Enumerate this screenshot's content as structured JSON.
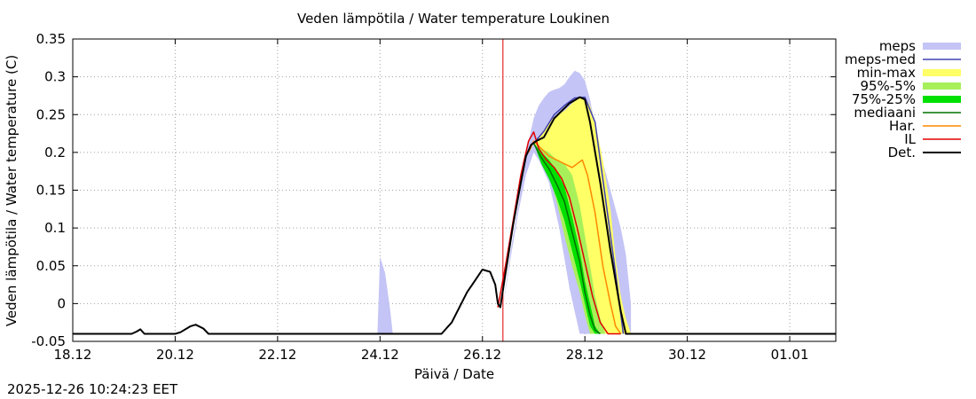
{
  "chart_data": {
    "type": "area",
    "title": "Veden lämpötila / Water temperature Loukinen",
    "xlabel": "Päivä / Date",
    "ylabel": "Veden lämpötila / Water temperature (C)",
    "xlim": [
      0,
      14.9
    ],
    "ylim": [
      -0.05,
      0.35
    ],
    "yticks": [
      -0.05,
      0,
      0.05,
      0.1,
      0.15,
      0.2,
      0.25,
      0.3,
      0.35
    ],
    "ytick_labels": [
      "-0.05",
      "0",
      "0.05",
      "0.1",
      "0.15",
      "0.2",
      "0.25",
      "0.3",
      "0.35"
    ],
    "xticks": [
      0,
      2,
      4,
      6,
      8,
      10,
      12,
      14
    ],
    "xtick_labels": [
      "18.12",
      "20.12",
      "22.12",
      "24.12",
      "26.12",
      "28.12",
      "30.12",
      "01.01"
    ],
    "grid": true,
    "now_line_x": 8.4,
    "legend": [
      {
        "key": "meps",
        "label": "meps",
        "color": "#c4c4f6",
        "kind": "band"
      },
      {
        "key": "meps_med",
        "label": "meps-med",
        "color": "#4040b0",
        "kind": "line"
      },
      {
        "key": "minmax",
        "label": "min-max",
        "color": "#ffff66",
        "kind": "band"
      },
      {
        "key": "p95_5",
        "label": "95%-5%",
        "color": "#a8f05a",
        "kind": "band"
      },
      {
        "key": "p75_25",
        "label": "75%-25%",
        "color": "#00e000",
        "kind": "band"
      },
      {
        "key": "mediaani",
        "label": "mediaani",
        "color": "#007000",
        "kind": "line"
      },
      {
        "key": "har",
        "label": "Har.",
        "color": "#ff8800",
        "kind": "line"
      },
      {
        "key": "il",
        "label": "IL",
        "color": "#e00000",
        "kind": "line"
      },
      {
        "key": "det",
        "label": "Det.",
        "color": "#000000",
        "kind": "line"
      }
    ],
    "series": [
      {
        "name": "meps",
        "kind": "band",
        "x": [
          5.95,
          6.0,
          6.1,
          6.2,
          6.25,
          8.4,
          8.55,
          8.7,
          8.85,
          9.0,
          9.1,
          9.2,
          9.3,
          9.4,
          9.5,
          9.6,
          9.7,
          9.8,
          9.9,
          10.0,
          10.1,
          10.3,
          10.5,
          10.7,
          10.8,
          10.9
        ],
        "upper": [
          -0.04,
          0.062,
          0.04,
          -0.01,
          -0.04,
          -0.005,
          0.07,
          0.13,
          0.2,
          0.245,
          0.262,
          0.272,
          0.28,
          0.283,
          0.285,
          0.29,
          0.3,
          0.308,
          0.305,
          0.295,
          0.27,
          0.2,
          0.15,
          0.1,
          0.065,
          0.0
        ],
        "lower": [
          -0.04,
          -0.04,
          -0.04,
          -0.04,
          -0.04,
          -0.005,
          0.06,
          0.12,
          0.17,
          0.2,
          0.19,
          0.175,
          0.16,
          0.13,
          0.1,
          0.06,
          0.02,
          -0.01,
          -0.04,
          -0.04,
          -0.04,
          -0.04,
          -0.04,
          -0.04,
          -0.04,
          -0.04
        ]
      },
      {
        "name": "min-max",
        "kind": "band",
        "x": [
          9.0,
          9.15,
          9.3,
          9.45,
          9.6,
          9.75,
          9.9,
          10.0,
          10.1,
          10.2,
          10.35,
          10.5,
          10.6,
          10.7,
          10.8,
          10.9
        ],
        "upper": [
          0.212,
          0.225,
          0.24,
          0.25,
          0.255,
          0.265,
          0.273,
          0.273,
          0.262,
          0.24,
          0.19,
          0.125,
          0.06,
          0.01,
          -0.02,
          -0.04
        ],
        "lower": [
          0.212,
          0.2,
          0.185,
          0.17,
          0.14,
          0.1,
          0.06,
          0.03,
          0.0,
          -0.025,
          -0.04,
          -0.04,
          -0.04,
          -0.04,
          -0.04,
          -0.04
        ]
      },
      {
        "name": "95%-5%",
        "kind": "band",
        "x": [
          9.0,
          9.15,
          9.3,
          9.45,
          9.6,
          9.75,
          9.9,
          10.0,
          10.1,
          10.2,
          10.3,
          10.4,
          10.5
        ],
        "upper": [
          0.212,
          0.205,
          0.2,
          0.19,
          0.185,
          0.17,
          0.13,
          0.09,
          0.05,
          0.01,
          -0.02,
          -0.04,
          -0.04
        ],
        "lower": [
          0.212,
          0.195,
          0.17,
          0.135,
          0.09,
          0.05,
          0.015,
          -0.015,
          -0.04,
          -0.04,
          -0.04,
          -0.04,
          -0.04
        ]
      },
      {
        "name": "75%-25%",
        "kind": "band",
        "x": [
          9.0,
          9.15,
          9.3,
          9.45,
          9.6,
          9.75,
          9.9,
          10.0,
          10.1,
          10.2,
          10.3
        ],
        "upper": [
          0.212,
          0.2,
          0.19,
          0.175,
          0.155,
          0.115,
          0.07,
          0.03,
          0.0,
          -0.03,
          -0.04
        ],
        "lower": [
          0.212,
          0.185,
          0.165,
          0.14,
          0.11,
          0.07,
          0.03,
          0.0,
          -0.03,
          -0.04,
          -0.04
        ]
      },
      {
        "name": "mediaani",
        "kind": "line",
        "x": [
          9.0,
          9.15,
          9.3,
          9.45,
          9.6,
          9.75,
          9.9,
          10.0,
          10.1,
          10.2,
          10.3
        ],
        "y": [
          0.212,
          0.193,
          0.178,
          0.158,
          0.135,
          0.095,
          0.055,
          0.015,
          -0.015,
          -0.035,
          -0.04
        ]
      },
      {
        "name": "meps-med",
        "kind": "line",
        "x": [
          9.0,
          9.2,
          9.4,
          9.6,
          9.8,
          10.0,
          10.2,
          10.4,
          10.6,
          10.75
        ],
        "y": [
          0.212,
          0.228,
          0.25,
          0.262,
          0.272,
          0.273,
          0.24,
          0.14,
          0.04,
          -0.04
        ]
      },
      {
        "name": "Har.",
        "kind": "line",
        "x": [
          8.9,
          9.0,
          9.15,
          9.3,
          9.45,
          9.6,
          9.75,
          9.85,
          9.95,
          10.05,
          10.2,
          10.35,
          10.5,
          10.6,
          10.7
        ],
        "y": [
          0.2,
          0.215,
          0.205,
          0.195,
          0.19,
          0.185,
          0.18,
          0.185,
          0.19,
          0.17,
          0.12,
          0.05,
          0.0,
          -0.03,
          -0.04
        ]
      },
      {
        "name": "IL",
        "kind": "line",
        "x": [
          8.3,
          8.45,
          8.6,
          8.75,
          8.9,
          9.0,
          9.1,
          9.25,
          9.4,
          9.55,
          9.7,
          9.85,
          10.0,
          10.15,
          10.3,
          10.45,
          10.6,
          10.7
        ],
        "y": [
          -0.005,
          0.05,
          0.11,
          0.17,
          0.215,
          0.227,
          0.205,
          0.19,
          0.18,
          0.165,
          0.14,
          0.1,
          0.055,
          0.01,
          -0.025,
          -0.04,
          -0.04,
          -0.04
        ]
      },
      {
        "name": "Det.",
        "kind": "line",
        "x": [
          0,
          1.15,
          1.25,
          1.32,
          1.4,
          2.0,
          2.1,
          2.3,
          2.4,
          2.55,
          2.65,
          7.2,
          7.4,
          7.55,
          7.7,
          7.85,
          8.0,
          8.15,
          8.25,
          8.3,
          8.35,
          8.45,
          8.6,
          8.75,
          8.85,
          8.95,
          9.05,
          9.2,
          9.4,
          9.55,
          9.7,
          9.9,
          10.0,
          10.1,
          10.3,
          10.5,
          10.7,
          10.8,
          14.9
        ],
        "y": [
          -0.04,
          -0.04,
          -0.037,
          -0.034,
          -0.04,
          -0.04,
          -0.038,
          -0.03,
          -0.028,
          -0.033,
          -0.04,
          -0.04,
          -0.025,
          -0.005,
          0.015,
          0.03,
          0.045,
          0.042,
          0.025,
          0.0,
          -0.005,
          0.04,
          0.105,
          0.16,
          0.195,
          0.21,
          0.215,
          0.22,
          0.245,
          0.255,
          0.265,
          0.273,
          0.27,
          0.24,
          0.16,
          0.07,
          -0.01,
          -0.04,
          -0.04
        ]
      }
    ]
  },
  "timestamp": "2025-12-26 10:24:23 EET"
}
